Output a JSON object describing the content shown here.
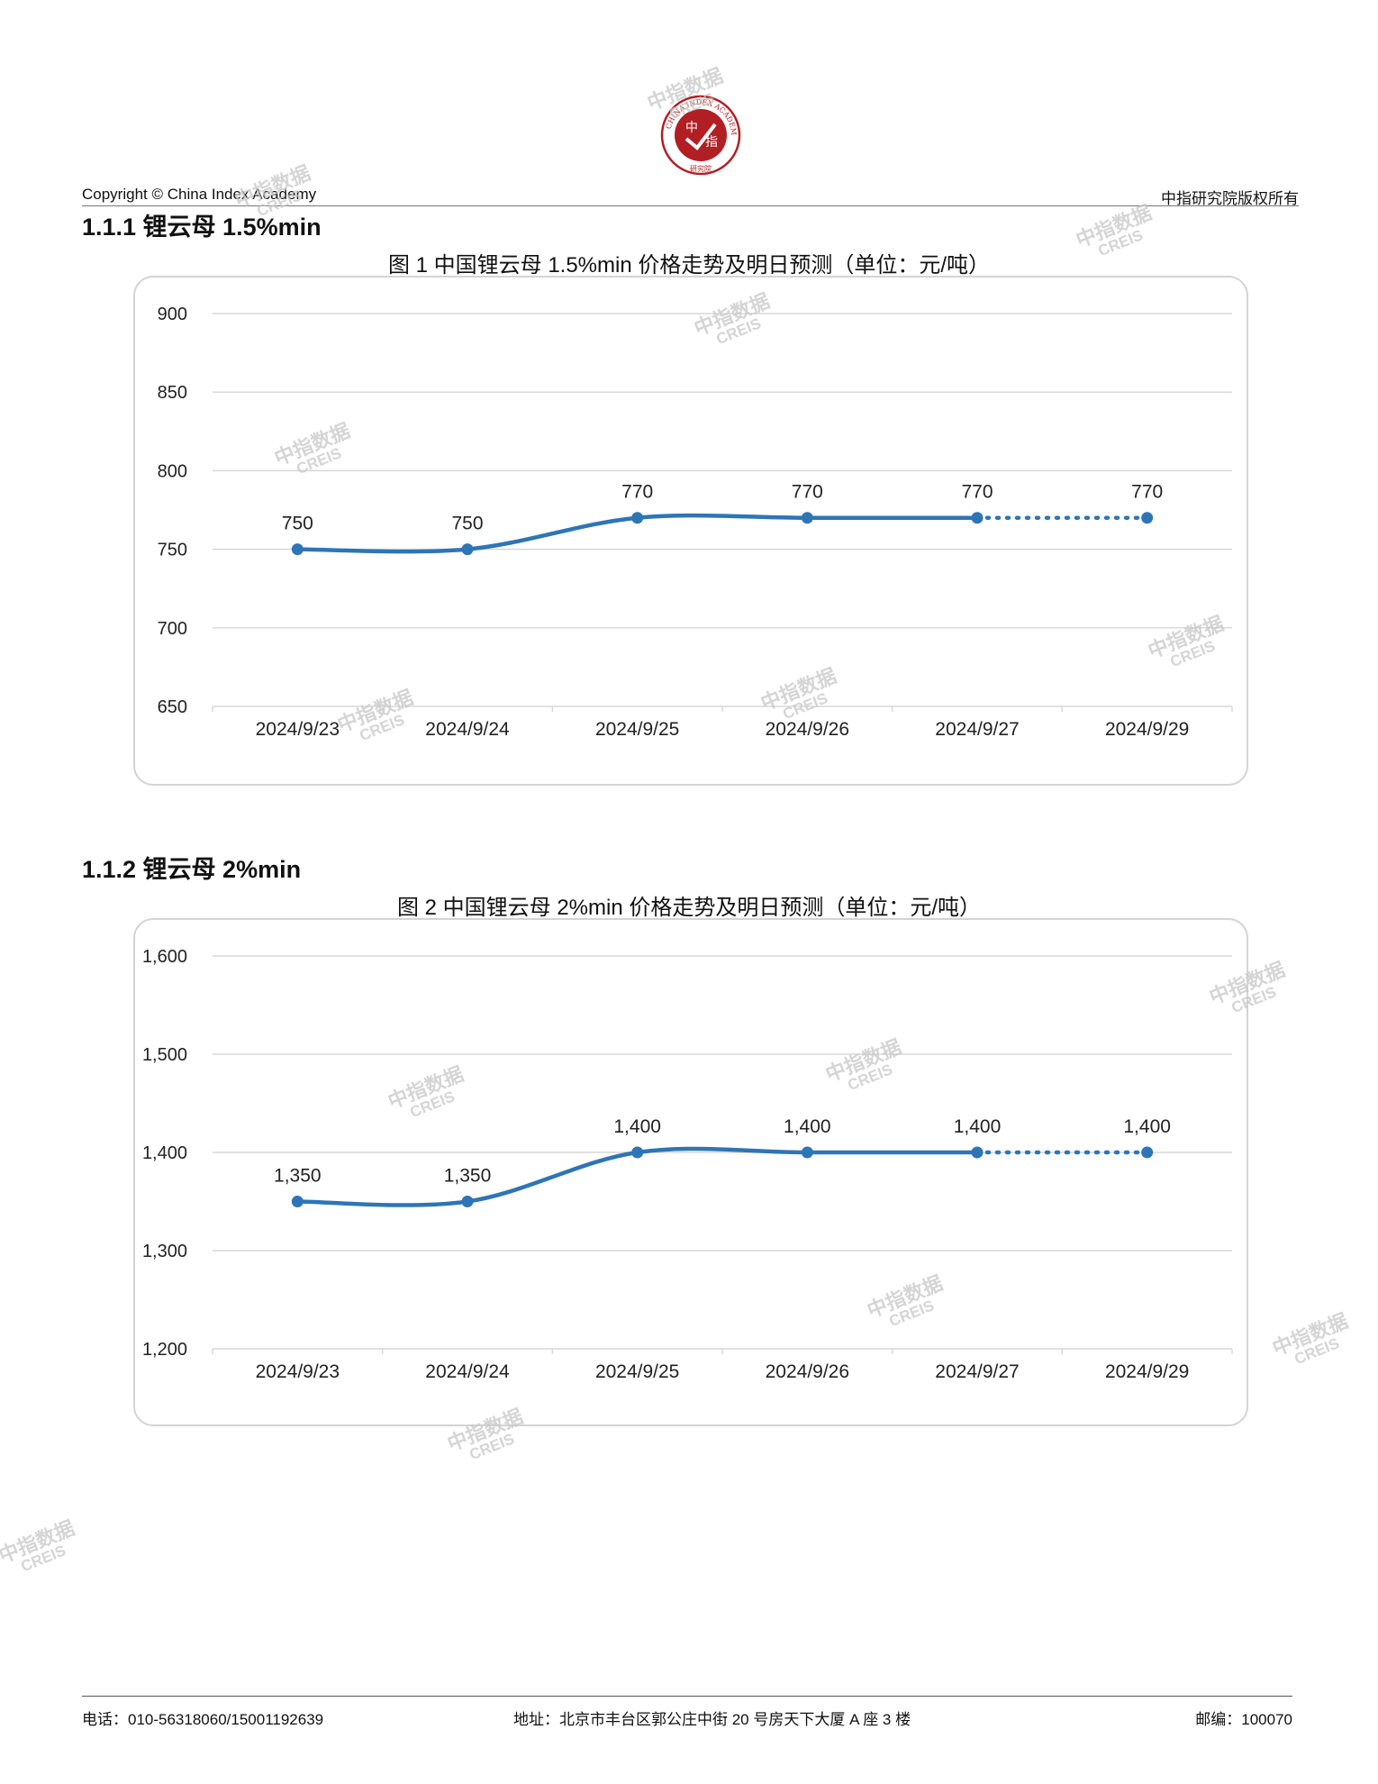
{
  "header": {
    "copyright": "Copyright © China Index Academy",
    "rights": "中指研究院版权所有",
    "logo_center": "中指",
    "logo_ring": "CHINA INDEX ACADEMY",
    "logo_bottom": "研究院"
  },
  "sections": [
    {
      "title": "1.1.1 锂云母 1.5%min",
      "chart_title": "图 1 中国锂云母 1.5%min 价格走势及明日预测（单位：元/吨）"
    },
    {
      "title": "1.1.2 锂云母 2%min",
      "chart_title": "图 2 中国锂云母 2%min 价格走势及明日预测（单位：元/吨）"
    }
  ],
  "chart_data": [
    {
      "type": "line",
      "title": "图 1 中国锂云母 1.5%min 价格走势及明日预测（单位：元/吨）",
      "categories": [
        "2024/9/23",
        "2024/9/24",
        "2024/9/25",
        "2024/9/26",
        "2024/9/27",
        "2024/9/29"
      ],
      "values": [
        750,
        750,
        770,
        770,
        770,
        770
      ],
      "value_labels": [
        "750",
        "750",
        "770",
        "770",
        "770",
        "770"
      ],
      "forecast_from_index": 4,
      "ylim": [
        650,
        900
      ],
      "yticks": [
        650,
        700,
        750,
        800,
        850,
        900
      ],
      "ytick_labels": [
        "650",
        "700",
        "750",
        "800",
        "850",
        "900"
      ],
      "grid": true,
      "line_color": "#2e75b6"
    },
    {
      "type": "line",
      "title": "图 2 中国锂云母 2%min 价格走势及明日预测（单位：元/吨）",
      "categories": [
        "2024/9/23",
        "2024/9/24",
        "2024/9/25",
        "2024/9/26",
        "2024/9/27",
        "2024/9/29"
      ],
      "values": [
        1350,
        1350,
        1400,
        1400,
        1400,
        1400
      ],
      "value_labels": [
        "1,350",
        "1,350",
        "1,400",
        "1,400",
        "1,400",
        "1,400"
      ],
      "forecast_from_index": 4,
      "ylim": [
        1200,
        1600
      ],
      "yticks": [
        1200,
        1300,
        1400,
        1500,
        1600
      ],
      "ytick_labels": [
        "1,200",
        "1,300",
        "1,400",
        "1,500",
        "1,600"
      ],
      "grid": true,
      "line_color": "#2e75b6"
    }
  ],
  "watermark": {
    "line1": "中指数据",
    "line2": "CREIS"
  },
  "footer": {
    "phone": "电话：010-56318060/15001192639",
    "address": "地址：北京市丰台区郭公庄中街 20 号房天下大厦 A 座 3 楼",
    "postcode": "邮编：100070"
  }
}
